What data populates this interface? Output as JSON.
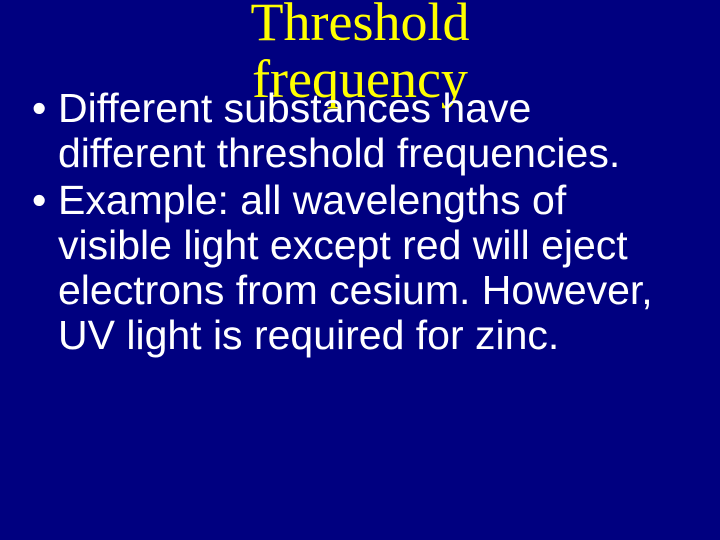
{
  "slide": {
    "background_color": "#000080",
    "title": {
      "line1": "Threshold",
      "line2": "frequency",
      "color": "#ffff00",
      "font_family": "Times New Roman",
      "fontsize_pt": 40
    },
    "body": {
      "color": "#ffffff",
      "font_family": "Comic Sans MS",
      "fontsize_pt": 31,
      "bullets": [
        "Different substances have different threshold frequencies.",
        "Example:  all wavelengths of visible light except red will eject electrons from cesium.  However, UV light is required for zinc."
      ]
    }
  }
}
